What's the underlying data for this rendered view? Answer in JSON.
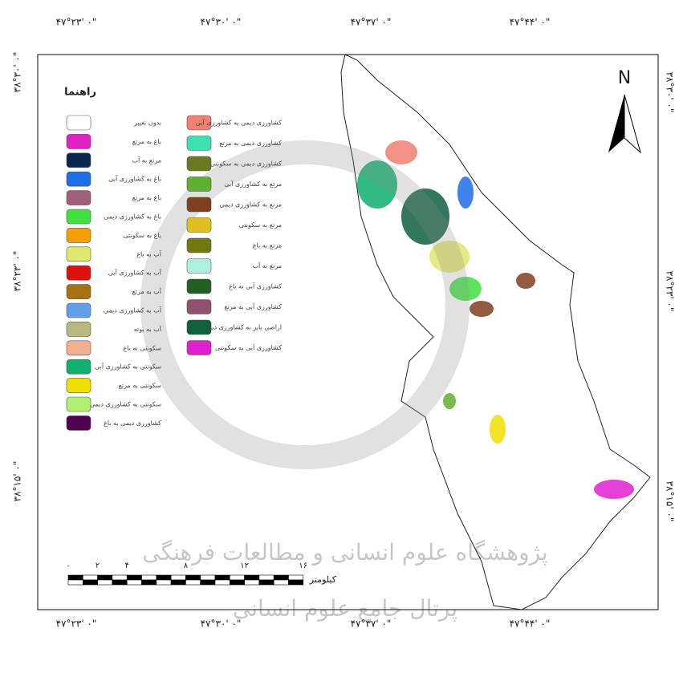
{
  "map": {
    "north": "N",
    "legend": {
      "title": "راهنما",
      "items": [
        {
          "label": "بدون تغییر",
          "color": "#ffffff"
        },
        {
          "label": "باغ به مرتع",
          "color": "#e020c0"
        },
        {
          "label": "مرتع به آب",
          "color": "#0a2850"
        },
        {
          "label": "باغ به کشاورزی آبی",
          "color": "#1e6ee8"
        },
        {
          "label": "باغ به مرتع",
          "color": "#a0607a"
        },
        {
          "label": "باغ به کشاورزی دیمی",
          "color": "#40e040"
        },
        {
          "label": "باغ به سکونتی",
          "color": "#f5a000"
        },
        {
          "label": "آب به باغ",
          "color": "#e0e870"
        },
        {
          "label": "آب به کشاورزی آبی",
          "color": "#e01010"
        },
        {
          "label": "آب به مرتع",
          "color": "#a87010"
        },
        {
          "label": "آب به کشاورزی دیمی",
          "color": "#60a0e8"
        },
        {
          "label": "آب به بوته",
          "color": "#b8b880"
        },
        {
          "label": "سکونتی به باغ",
          "color": "#f0b090"
        },
        {
          "label": "سکونتی به کشاورزی آبی",
          "color": "#10b070"
        },
        {
          "label": "سکونتی به مرتع",
          "color": "#f0e000"
        },
        {
          "label": "سکونتی به کشاورزی دیمی",
          "color": "#b0f070"
        },
        {
          "label": "کشاورزی دیمی به باغ",
          "color": "#500050"
        },
        {
          "label": "کشاورزی دیمی به کشاورزی آبی",
          "color": "#f08070"
        },
        {
          "label": "کشاورزی دیمی به مرتع",
          "color": "#40e0b0"
        },
        {
          "label": "کشاورزی دیمی به سکونتی",
          "color": "#6a7a20"
        },
        {
          "label": "مرتع به کشاورزی آبی",
          "color": "#60b030"
        },
        {
          "label": "مرتع به کشاورزی دیمی",
          "color": "#804020"
        },
        {
          "label": "مرتع به سکونتی",
          "color": "#e0c020"
        },
        {
          "label": "مرتع به باغ",
          "color": "#707a10"
        },
        {
          "label": "مرتع به آب",
          "color": "#b0f0e0"
        },
        {
          "label": "کشاورزی آبی به باغ",
          "color": "#206020"
        },
        {
          "label": "کشاورزی آبی به مرتع",
          "color": "#905070"
        },
        {
          "label": "اراضی بایر به کشاورزی دیمی",
          "color": "#106040"
        },
        {
          "label": "کشاورزی آبی به سکونتی",
          "color": "#e020d0"
        }
      ]
    },
    "top_labels": [
      "۴۷°۲۳' ۰\"",
      "۴۷°۳۰' ۰\"",
      "۴۷°۳۷' ۰\"",
      "۴۷°۴۴' ۰\""
    ],
    "bottom_labels": [
      "۴۷°۲۳' ۰\"",
      "۴۷°۳۰' ۰\"",
      "۴۷°۳۷' ۰\"",
      "۴۷°۴۴' ۰\""
    ],
    "left_labels": [
      "۳۸°۳۰' ۰\"",
      "۳۸°۲۳' ۰\"",
      "۳۸°۱۵' ۰\""
    ],
    "right_labels": [
      "۳۸°۳۰' ۰\"",
      "۳۸°۲۳' ۰\"",
      "۳۸°۱۵' ۰\""
    ],
    "scale": {
      "ticks": [
        "۰",
        "۲",
        "۴",
        "۸",
        "۱۲",
        "۱۶"
      ],
      "unit": "کیلومتر"
    },
    "watermark": [
      "پژوهشگاه علوم انسانی و مطالعات فرهنگی",
      "پرتال جامع علوم انسانی"
    ]
  }
}
